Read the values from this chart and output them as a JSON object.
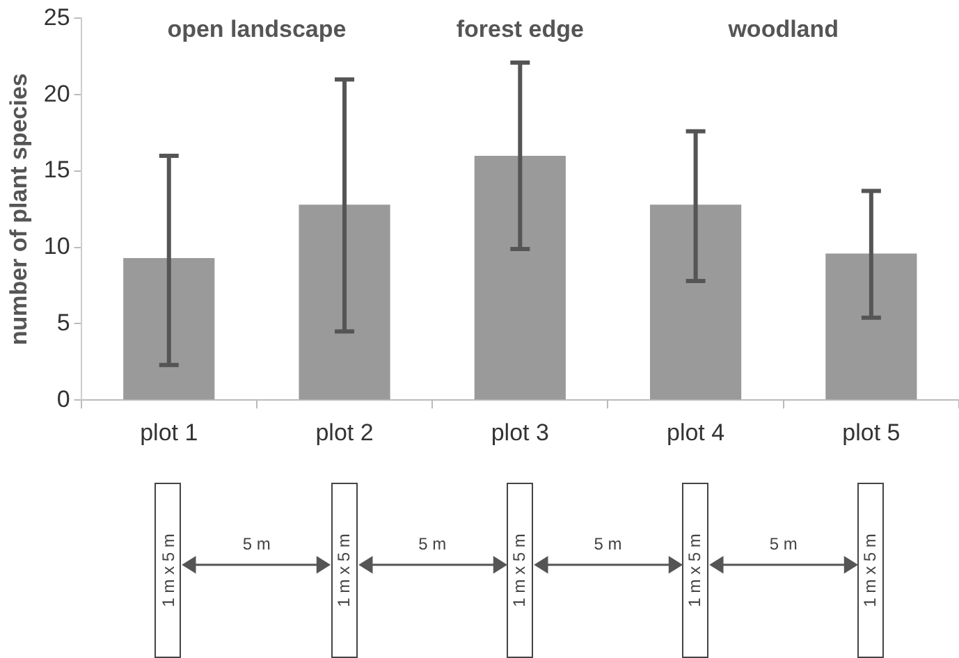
{
  "chart_data": {
    "type": "bar",
    "ylabel": "number of plant species",
    "categories": [
      "plot 1",
      "plot 2",
      "plot 3",
      "plot 4",
      "plot 5"
    ],
    "values": [
      9.3,
      12.8,
      16.0,
      12.8,
      9.6
    ],
    "errors": [
      [
        2.3,
        16.0
      ],
      [
        4.5,
        21.0
      ],
      [
        9.9,
        22.1
      ],
      [
        7.8,
        17.6
      ],
      [
        5.4,
        13.7
      ]
    ],
    "color": "#9a9a9a",
    "ylim": [
      0,
      25
    ],
    "yticks": [
      0,
      5,
      10,
      15,
      20,
      25
    ],
    "grid": false,
    "legend": false,
    "annotations": [
      "open landscape",
      "forest edge",
      "woodland",
      "1 m x 5 m",
      "1 m x 5 m",
      "1 m x 5 m",
      "1 m x 5 m",
      "1 m x 5 m",
      "5 m",
      "5 m",
      "5 m",
      "5 m"
    ]
  }
}
